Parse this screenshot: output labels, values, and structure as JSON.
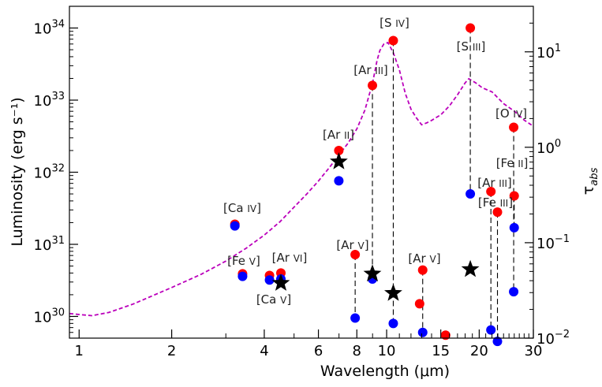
{
  "chart_data": {
    "type": "scatter",
    "title": "",
    "xlabel": "Wavelength (μm)",
    "ylabel": "Luminosity (erg s⁻¹)",
    "y2label": "τ_abs",
    "xscale": "log",
    "yscale": "log",
    "y2scale": "log",
    "xlim": [
      0.93,
      30
    ],
    "ylim": [
      5e+29,
      2e+34
    ],
    "y2lim": [
      0.01,
      30
    ],
    "xticks": [
      1,
      2,
      4,
      6,
      8,
      10,
      15,
      20,
      30
    ],
    "xtick_labels": [
      "1",
      "2",
      "4",
      "6",
      "8",
      "10",
      "15",
      "20",
      "30"
    ],
    "yticks": [
      {
        "base": "10",
        "exp": "30",
        "value": 1e+30
      },
      {
        "base": "10",
        "exp": "31",
        "value": 1e+31
      },
      {
        "base": "10",
        "exp": "32",
        "value": 1e+32
      },
      {
        "base": "10",
        "exp": "33",
        "value": 1e+33
      },
      {
        "base": "10",
        "exp": "34",
        "value": 1e+34
      }
    ],
    "y2ticks": [
      {
        "base": "10",
        "exp": "−2",
        "value": 0.01
      },
      {
        "base": "10",
        "exp": "−1",
        "value": 0.1
      },
      {
        "base": "10",
        "exp": "0",
        "value": 1
      },
      {
        "base": "10",
        "exp": "1",
        "value": 10
      }
    ],
    "colors": {
      "red": "#ff0000",
      "blue": "#0000ff",
      "curve": "#bb00bb",
      "star": "#000000"
    },
    "lines": [
      {
        "label": "[Ca IV]",
        "x": 3.21,
        "red": 1.9e+31,
        "blue": 1.8e+31,
        "connector": false
      },
      {
        "label": "[Fe V]",
        "x": 3.4,
        "red": 3.9e+30,
        "blue": 3.6e+30,
        "connector": false
      },
      {
        "label": "[Ca V]",
        "x": 4.16,
        "red": 3.7e+30,
        "blue": 3.2e+30,
        "connector": false
      },
      {
        "label": "[Ar VI]",
        "x": 4.53,
        "red": 4e+30,
        "blue": 3.3e+30,
        "connector": false
      },
      {
        "label": "[Ar II]",
        "x": 6.99,
        "red": 2e+32,
        "blue": 7.6e+31,
        "connector": false
      },
      {
        "label": "[Ar V]",
        "x": 7.9,
        "red": 7.2e+30,
        "blue": 9.5e+29,
        "connector": true
      },
      {
        "label": "[Ar III]",
        "x": 8.99,
        "red": 1.6e+33,
        "blue": 3.3e+30,
        "connector": true
      },
      {
        "label": "[S IV]",
        "x": 10.51,
        "red": 6.7e+33,
        "blue": 8e+29,
        "connector": true
      },
      {
        "label": "[Ar V]",
        "x": 13.1,
        "red": 4.4e+30,
        "blue": 6e+29,
        "connector": true
      },
      {
        "label": "",
        "x": 12.8,
        "red": 1.5e+30,
        "blue": null,
        "connector": false
      },
      {
        "label": "",
        "x": 15.55,
        "red": 5.5e+29,
        "blue": null,
        "connector": false
      },
      {
        "label": "[S III]",
        "x": 18.71,
        "red": 1e+34,
        "blue": 5e+31,
        "connector": true
      },
      {
        "label": "[Ar III]",
        "x": 21.83,
        "red": 5.4e+31,
        "blue": 6.5e+29,
        "connector": true
      },
      {
        "label": "[Fe III]",
        "x": 22.93,
        "red": 2.8e+31,
        "blue": 4.5e+29,
        "connector": true
      },
      {
        "label": "[Fe II]",
        "x": 25.99,
        "red": 4.7e+31,
        "blue": 1.7e+31,
        "connector": true
      },
      {
        "label": "[O IV]",
        "x": 25.89,
        "red": 4.2e+32,
        "blue": 2.2e+30,
        "connector": true
      }
    ],
    "stars": [
      {
        "x": 6.99,
        "y": 1.4e+32
      },
      {
        "x": 4.53,
        "y": 2.9e+30
      },
      {
        "x": 8.99,
        "y": 3.9e+30
      },
      {
        "x": 10.51,
        "y": 2.1e+30
      },
      {
        "x": 18.71,
        "y": 4.5e+30
      }
    ],
    "tau_curve": [
      [
        0.93,
        0.0181
      ],
      [
        1.0,
        0.0177
      ],
      [
        1.1,
        0.0172
      ],
      [
        1.25,
        0.0186
      ],
      [
        1.5,
        0.0228
      ],
      [
        2.0,
        0.0339
      ],
      [
        2.5,
        0.0468
      ],
      [
        3.0,
        0.0641
      ],
      [
        3.5,
        0.0879
      ],
      [
        4.0,
        0.12
      ],
      [
        4.5,
        0.166
      ],
      [
        5.0,
        0.236
      ],
      [
        5.5,
        0.324
      ],
      [
        6.0,
        0.443
      ],
      [
        6.5,
        0.608
      ],
      [
        7.0,
        0.832
      ],
      [
        7.5,
        1.11
      ],
      [
        8.0,
        1.56
      ],
      [
        8.5,
        2.45
      ],
      [
        9.0,
        4.72
      ],
      [
        9.3,
        8.06
      ],
      [
        9.5,
        10.3
      ],
      [
        9.8,
        12.1
      ],
      [
        10.1,
        12.5
      ],
      [
        10.5,
        9.89
      ],
      [
        11.0,
        6.47
      ],
      [
        11.5,
        3.67
      ],
      [
        12.0,
        2.51
      ],
      [
        12.5,
        2.03
      ],
      [
        13.0,
        1.72
      ],
      [
        13.5,
        1.8
      ],
      [
        14.0,
        1.91
      ],
      [
        14.5,
        2.05
      ],
      [
        15.0,
        2.19
      ],
      [
        16.0,
        2.71
      ],
      [
        17.0,
        3.55
      ],
      [
        18.0,
        4.72
      ],
      [
        18.5,
        5.23
      ],
      [
        19.5,
        4.72
      ],
      [
        20.5,
        4.19
      ],
      [
        22.0,
        3.81
      ],
      [
        24.0,
        2.87
      ],
      [
        26.0,
        2.39
      ],
      [
        28.0,
        1.93
      ],
      [
        30.0,
        1.66
      ]
    ]
  }
}
